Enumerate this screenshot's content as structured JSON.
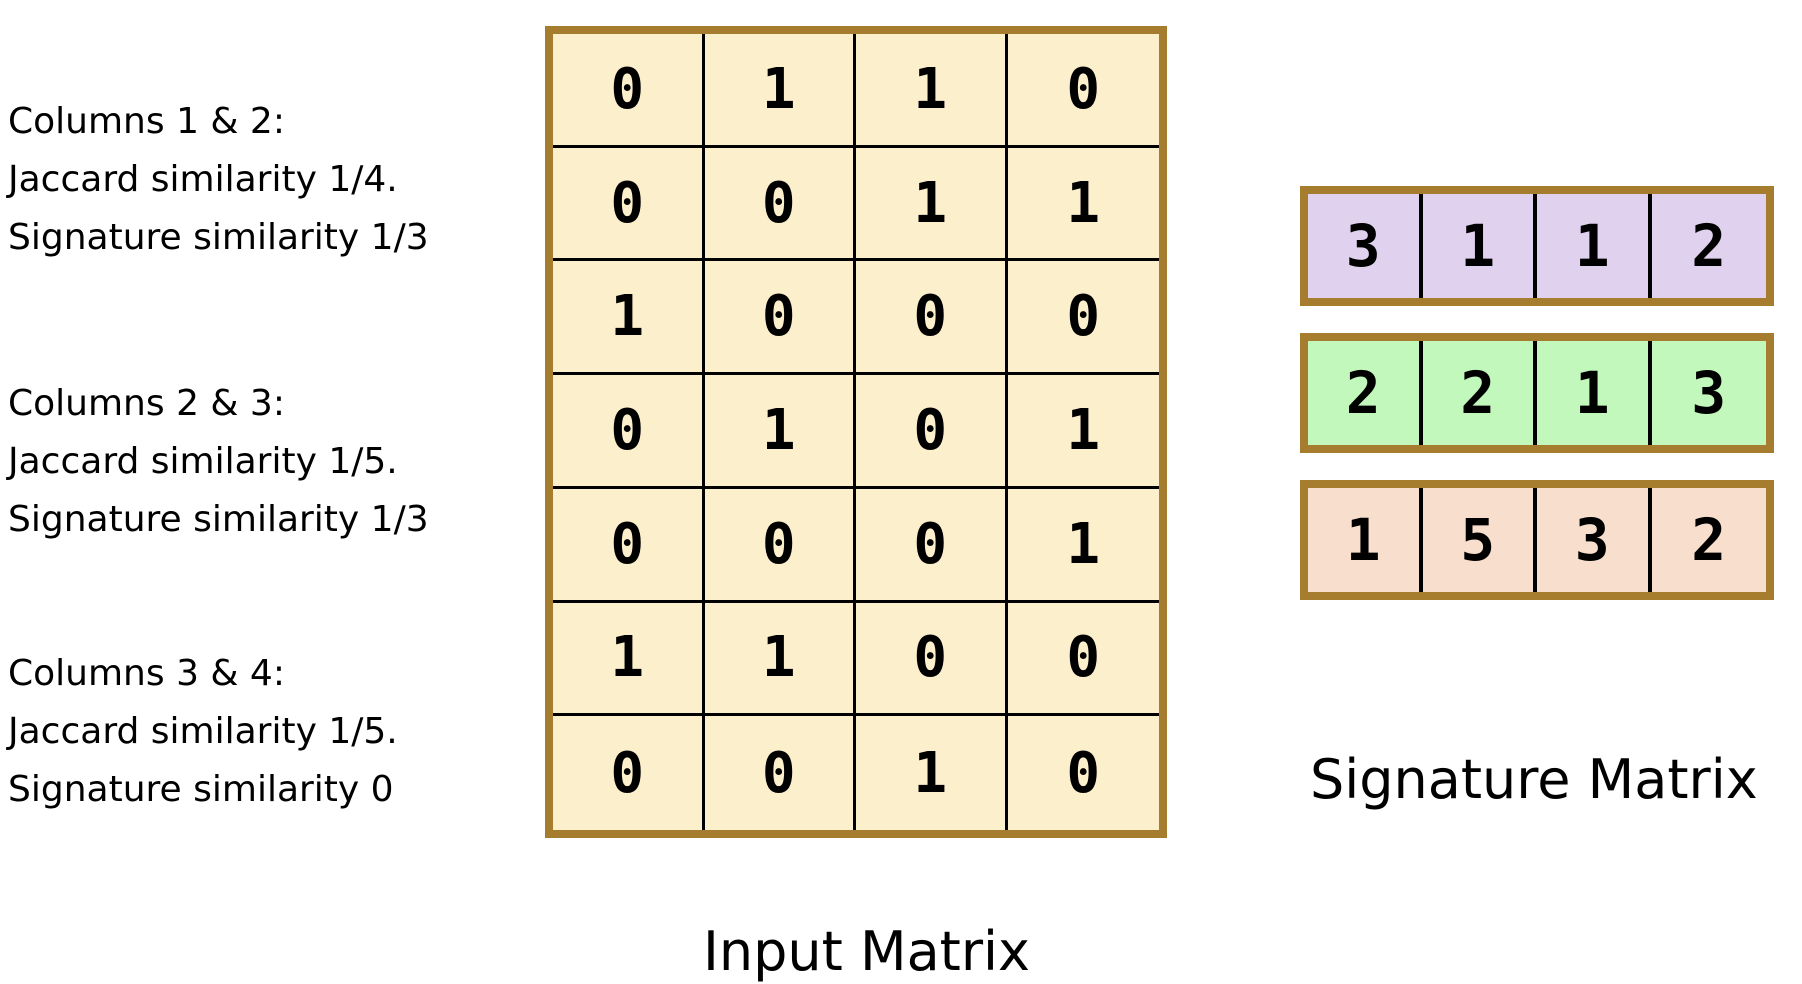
{
  "notes": [
    {
      "pair": "Columns 1 & 2:",
      "jaccard": "Jaccard similarity 1/4.",
      "signature": "Signature similarity 1/3"
    },
    {
      "pair": "Columns 2 & 3:",
      "jaccard": "Jaccard similarity 1/5.",
      "signature": "Signature similarity 1/3"
    },
    {
      "pair": "Columns 3 & 4:",
      "jaccard": "Jaccard similarity 1/5.",
      "signature": "Signature similarity 0"
    }
  ],
  "input_matrix": {
    "caption": "Input Matrix",
    "fill_color": "#fcefcc",
    "border_color": "#a67c2e",
    "rows": [
      [
        "0",
        "1",
        "1",
        "0"
      ],
      [
        "0",
        "0",
        "1",
        "1"
      ],
      [
        "1",
        "0",
        "0",
        "0"
      ],
      [
        "0",
        "1",
        "0",
        "1"
      ],
      [
        "0",
        "0",
        "0",
        "1"
      ],
      [
        "1",
        "1",
        "0",
        "0"
      ],
      [
        "0",
        "0",
        "1",
        "0"
      ]
    ]
  },
  "signature_matrix": {
    "caption": "Signature Matrix",
    "border_color": "#a67c2e",
    "rows": [
      {
        "color": "#e0d2ee",
        "values": [
          "3",
          "1",
          "1",
          "2"
        ]
      },
      {
        "color": "#c2f8bb",
        "values": [
          "2",
          "2",
          "1",
          "3"
        ]
      },
      {
        "color": "#f8dfcd",
        "values": [
          "1",
          "5",
          "3",
          "2"
        ]
      }
    ]
  }
}
